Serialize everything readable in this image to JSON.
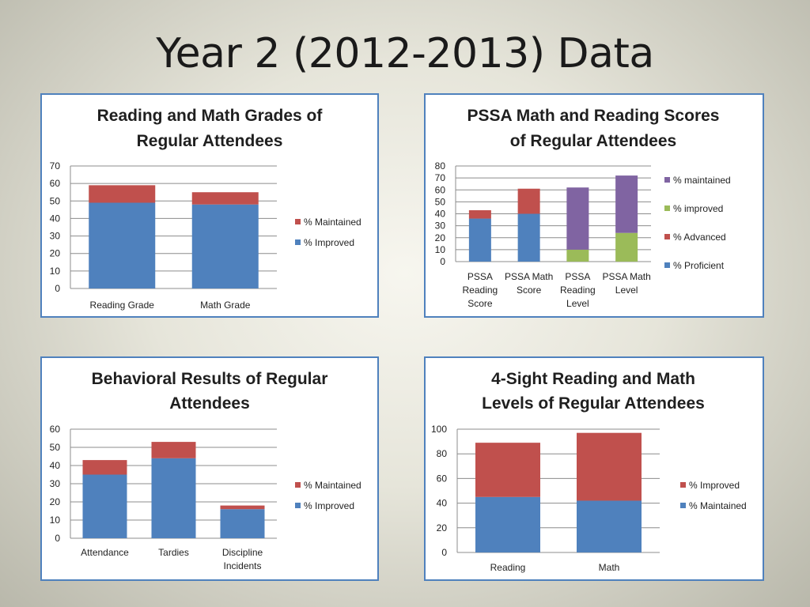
{
  "slide": {
    "title": "Year 2 (2012-2013) Data"
  },
  "colors": {
    "blue": "#4f81bd",
    "red": "#c0504d",
    "green": "#9bbb59",
    "purple": "#8064a2",
    "border": "#4f81bd"
  },
  "chart_data": [
    {
      "id": "reading-math-grades",
      "type": "bar",
      "stacked": true,
      "title_lines": [
        "Reading and Math Grades of",
        "Regular Attendees"
      ],
      "categories": [
        [
          "Reading Grade"
        ],
        [
          "Math Grade"
        ]
      ],
      "series": [
        {
          "name": "% Improved",
          "color": "#4f81bd",
          "values": [
            49,
            48
          ]
        },
        {
          "name": "% Maintained",
          "color": "#c0504d",
          "values": [
            10,
            7
          ]
        }
      ],
      "ylim": [
        0,
        70
      ],
      "yticks": [
        0,
        10,
        20,
        30,
        40,
        50,
        60,
        70
      ],
      "grid": true,
      "legend": "right"
    },
    {
      "id": "pssa-math-reading",
      "type": "bar",
      "stacked": true,
      "title_lines": [
        "PSSA Math and Reading Scores",
        "of Regular Attendees"
      ],
      "categories": [
        [
          "PSSA",
          "Reading",
          "Score"
        ],
        [
          "PSSA Math",
          "Score"
        ],
        [
          "PSSA",
          "Reading",
          "Level"
        ],
        [
          "PSSA Math",
          "Level"
        ]
      ],
      "series": [
        {
          "name": "%  Proficient",
          "color": "#4f81bd",
          "values": [
            36,
            40,
            0,
            0
          ]
        },
        {
          "name": "% Advanced",
          "color": "#c0504d",
          "values": [
            7,
            21,
            0,
            0
          ]
        },
        {
          "name": "% improved",
          "color": "#9bbb59",
          "values": [
            0,
            0,
            10,
            24
          ]
        },
        {
          "name": "% maintained",
          "color": "#8064a2",
          "values": [
            0,
            0,
            52,
            48
          ]
        }
      ],
      "ylim": [
        0,
        80
      ],
      "yticks": [
        0,
        10,
        20,
        30,
        40,
        50,
        60,
        70,
        80
      ],
      "grid": true,
      "legend": "right"
    },
    {
      "id": "behavioral-results",
      "type": "bar",
      "stacked": true,
      "title_lines": [
        "Behavioral Results of Regular",
        "Attendees"
      ],
      "categories": [
        [
          "Attendance"
        ],
        [
          "Tardies"
        ],
        [
          "Discipline",
          "Incidents"
        ]
      ],
      "series": [
        {
          "name": "% Improved",
          "color": "#4f81bd",
          "values": [
            35,
            44,
            16
          ]
        },
        {
          "name": "% Maintained",
          "color": "#c0504d",
          "values": [
            8,
            9,
            2
          ]
        }
      ],
      "ylim": [
        0,
        60
      ],
      "yticks": [
        0,
        10,
        20,
        30,
        40,
        50,
        60
      ],
      "grid": true,
      "legend": "right"
    },
    {
      "id": "four-sight-levels",
      "type": "bar",
      "stacked": true,
      "title_lines": [
        "4-Sight Reading and Math",
        "Levels of Regular Attendees"
      ],
      "categories": [
        [
          "Reading"
        ],
        [
          "Math"
        ]
      ],
      "series": [
        {
          "name": "% Maintained",
          "color": "#4f81bd",
          "values": [
            45,
            42
          ]
        },
        {
          "name": "% Improved",
          "color": "#c0504d",
          "values": [
            44,
            55
          ]
        }
      ],
      "ylim": [
        0,
        100
      ],
      "yticks": [
        0,
        20,
        40,
        60,
        80,
        100
      ],
      "grid": true,
      "legend": "right"
    }
  ]
}
